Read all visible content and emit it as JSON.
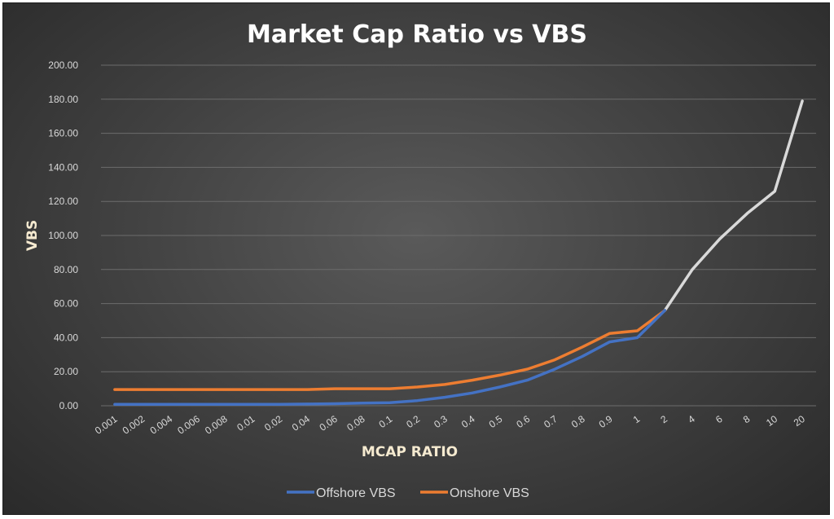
{
  "chart_data": {
    "type": "line",
    "title": "Market Cap Ratio vs VBS",
    "xlabel": "MCAP RATIO",
    "ylabel": "VBS",
    "categories": [
      "0.001",
      "0.002",
      "0.004",
      "0.006",
      "0.008",
      "0.01",
      "0.02",
      "0.04",
      "0.06",
      "0.08",
      "0.1",
      "0.2",
      "0.3",
      "0.4",
      "0.5",
      "0.6",
      "0.7",
      "0.8",
      "0.9",
      "1",
      "2",
      "4",
      "6",
      "8",
      "10",
      "20"
    ],
    "y_ticks": [
      "0.00",
      "20.00",
      "40.00",
      "60.00",
      "80.00",
      "100.00",
      "120.00",
      "140.00",
      "160.00",
      "180.00",
      "200.00"
    ],
    "ylim": [
      0,
      200
    ],
    "grid": true,
    "legend": "bottom",
    "series": [
      {
        "name": "Offshore VBS",
        "color": "#4472c4",
        "values": [
          0.8,
          0.8,
          0.8,
          0.8,
          0.8,
          0.8,
          0.8,
          1.0,
          1.2,
          1.6,
          1.8,
          3.0,
          5.0,
          7.5,
          11.0,
          15.0,
          21.5,
          29.0,
          37.5,
          40.0,
          56.0,
          null,
          null,
          null,
          null,
          null
        ]
      },
      {
        "name": "Onshore VBS",
        "color": "#ed7d31",
        "values": [
          9.5,
          9.5,
          9.5,
          9.5,
          9.5,
          9.5,
          9.5,
          9.5,
          10.0,
          10.0,
          10.0,
          11.0,
          12.5,
          15.0,
          18.0,
          21.5,
          27.0,
          34.5,
          42.5,
          44.0,
          56.0,
          null,
          null,
          null,
          null,
          null
        ]
      },
      {
        "color": "#d9d9d9",
        "values": [
          null,
          null,
          null,
          null,
          null,
          null,
          null,
          null,
          null,
          null,
          null,
          null,
          null,
          null,
          null,
          null,
          null,
          null,
          null,
          null,
          56.0,
          80.0,
          98.0,
          113.0,
          126.0,
          179.0
        ]
      }
    ]
  }
}
